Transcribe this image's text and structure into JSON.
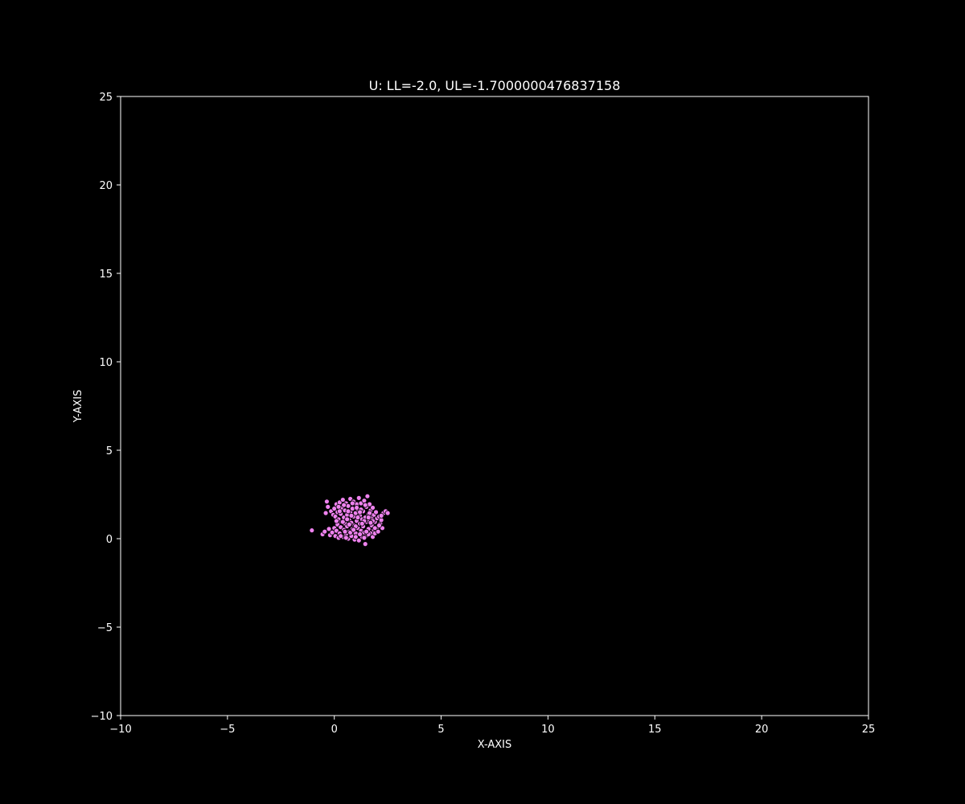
{
  "chart_data": {
    "type": "scatter",
    "title": "U: LL=-2.0, UL=-1.7000000476837158",
    "xlabel": "X-AXIS",
    "ylabel": "Y-AXIS",
    "xlim": [
      -10,
      25
    ],
    "ylim": [
      -10,
      25
    ],
    "xticks": [
      -10,
      -5,
      0,
      5,
      10,
      15,
      20,
      25
    ],
    "yticks": [
      -10,
      -5,
      0,
      5,
      10,
      15,
      20,
      25
    ],
    "xtick_labels": [
      "−10",
      "−5",
      "0",
      "5",
      "10",
      "15",
      "20",
      "25"
    ],
    "ytick_labels": [
      "−10",
      "−5",
      "0",
      "5",
      "10",
      "15",
      "20",
      "25"
    ],
    "grid": false,
    "background_color": "#000000",
    "axes_color": "#ffffff",
    "text_color": "#ffffff",
    "marker_color": "#ee82ee",
    "marker_edge_color": "#000000",
    "series": [
      {
        "points": [
          [
            -1.05,
            0.47
          ],
          [
            -0.55,
            0.25
          ],
          [
            -0.45,
            0.4
          ],
          [
            -0.4,
            1.45
          ],
          [
            -0.35,
            2.1
          ],
          [
            -0.3,
            1.8
          ],
          [
            -0.25,
            0.55
          ],
          [
            -0.2,
            0.2
          ],
          [
            -0.15,
            1.55
          ],
          [
            -0.1,
            0.35
          ],
          [
            -0.05,
            1.35
          ],
          [
            0.0,
            0.6
          ],
          [
            0.0,
            1.7
          ],
          [
            0.05,
            0.15
          ],
          [
            0.05,
            1.25
          ],
          [
            0.1,
            0.45
          ],
          [
            0.1,
            1.95
          ],
          [
            0.15,
            0.8
          ],
          [
            0.15,
            1.5
          ],
          [
            0.2,
            0.05
          ],
          [
            0.2,
            1.1
          ],
          [
            0.25,
            0.3
          ],
          [
            0.25,
            2.05
          ],
          [
            0.3,
            0.65
          ],
          [
            0.3,
            1.4
          ],
          [
            0.35,
            0.95
          ],
          [
            0.35,
            1.75
          ],
          [
            0.4,
            0.1
          ],
          [
            0.4,
            2.2
          ],
          [
            0.45,
            0.5
          ],
          [
            0.45,
            1.2
          ],
          [
            0.5,
            0.85
          ],
          [
            0.5,
            1.6
          ],
          [
            0.55,
            0.25
          ],
          [
            0.55,
            2.0
          ],
          [
            0.6,
            0.7
          ],
          [
            0.6,
            1.35
          ],
          [
            0.65,
            0.0
          ],
          [
            0.65,
            1.85
          ],
          [
            0.7,
            0.4
          ],
          [
            0.7,
            1.05
          ],
          [
            0.75,
            2.25
          ],
          [
            0.75,
            1.5
          ],
          [
            0.8,
            0.15
          ],
          [
            0.8,
            0.9
          ],
          [
            0.85,
            1.7
          ],
          [
            0.85,
            0.55
          ],
          [
            0.9,
            1.25
          ],
          [
            0.9,
            2.1
          ],
          [
            0.95,
            -0.05
          ],
          [
            0.95,
            0.75
          ],
          [
            1.0,
            1.45
          ],
          [
            1.0,
            0.3
          ],
          [
            1.05,
            1.95
          ],
          [
            1.05,
            1.0
          ],
          [
            1.1,
            0.6
          ],
          [
            1.1,
            1.65
          ],
          [
            1.15,
            -0.1
          ],
          [
            1.15,
            2.3
          ],
          [
            1.2,
            0.85
          ],
          [
            1.2,
            1.3
          ],
          [
            1.25,
            0.45
          ],
          [
            1.25,
            2.0
          ],
          [
            1.3,
            1.1
          ],
          [
            1.3,
            0.1
          ],
          [
            1.35,
            1.55
          ],
          [
            1.35,
            0.7
          ],
          [
            1.4,
            2.15
          ],
          [
            1.4,
            0.35
          ],
          [
            1.45,
            1.2
          ],
          [
            1.45,
            -0.3
          ],
          [
            1.5,
            0.95
          ],
          [
            1.5,
            1.8
          ],
          [
            1.55,
            0.2
          ],
          [
            1.55,
            2.4
          ],
          [
            1.6,
            1.4
          ],
          [
            1.6,
            0.55
          ],
          [
            1.65,
            1.0
          ],
          [
            1.65,
            1.95
          ],
          [
            1.7,
            0.3
          ],
          [
            1.7,
            1.6
          ],
          [
            1.75,
            0.75
          ],
          [
            1.75,
            1.2
          ],
          [
            1.8,
            0.1
          ],
          [
            1.8,
            1.75
          ],
          [
            1.85,
            0.5
          ],
          [
            1.85,
            1.35
          ],
          [
            1.9,
            0.95
          ],
          [
            1.9,
            0.3
          ],
          [
            1.95,
            1.5
          ],
          [
            2.0,
            0.65
          ],
          [
            2.0,
            1.15
          ],
          [
            2.05,
            0.4
          ],
          [
            2.1,
            1.25
          ],
          [
            2.15,
            0.85
          ],
          [
            2.2,
            1.05
          ],
          [
            2.25,
            0.6
          ],
          [
            2.3,
            1.45
          ],
          [
            2.4,
            1.55
          ],
          [
            2.5,
            1.45
          ],
          [
            0.2,
            1.8
          ],
          [
            0.45,
            1.9
          ],
          [
            0.65,
            1.55
          ],
          [
            0.85,
            2.0
          ],
          [
            1.05,
            1.75
          ],
          [
            1.25,
            1.65
          ],
          [
            1.45,
            1.9
          ],
          [
            1.65,
            1.45
          ],
          [
            0.3,
            0.15
          ],
          [
            0.55,
            0.05
          ],
          [
            0.75,
            0.35
          ],
          [
            1.0,
            0.1
          ],
          [
            1.2,
            0.25
          ],
          [
            1.4,
            0.05
          ],
          [
            1.6,
            0.25
          ],
          [
            0.4,
            0.95
          ],
          [
            0.6,
            1.1
          ],
          [
            0.8,
            1.3
          ],
          [
            1.0,
            0.7
          ],
          [
            1.2,
            1.5
          ],
          [
            1.4,
            1.0
          ],
          [
            1.6,
            1.2
          ],
          [
            1.8,
            1.0
          ],
          [
            0.1,
            1.0
          ],
          [
            0.25,
            1.55
          ],
          [
            0.5,
            0.4
          ],
          [
            0.7,
            0.8
          ],
          [
            0.9,
            0.5
          ],
          [
            1.1,
            1.2
          ],
          [
            1.3,
            0.85
          ],
          [
            1.5,
            0.4
          ],
          [
            1.7,
            0.9
          ],
          [
            1.9,
            0.6
          ],
          [
            2.1,
            0.75
          ],
          [
            2.2,
            1.3
          ]
        ]
      }
    ]
  }
}
